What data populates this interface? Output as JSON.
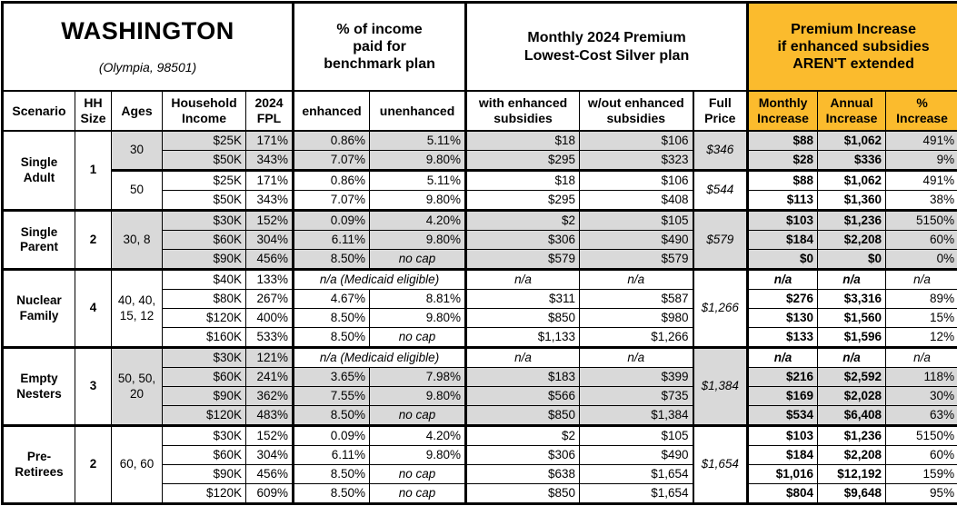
{
  "title": {
    "state": "WASHINGTON",
    "location": "(Olympia, 98501)"
  },
  "column_groups": {
    "benchmark": "% of income\npaid for\nbenchmark plan",
    "premium": "Monthly 2024 Premium\nLowest-Cost Silver plan",
    "increase": "Premium Increase\nif enhanced subsidies\nAREN'T extended"
  },
  "headers": {
    "scenario": "Scenario",
    "hh_size": "HH\nSize",
    "ages": "Ages",
    "household_income": "Household\nIncome",
    "fpl": "2024\nFPL",
    "enhanced": "enhanced",
    "unenhanced": "unenhanced",
    "with_sub": "with enhanced\nsubsidies",
    "without_sub": "w/out enhanced\nsubsidies",
    "full_price": "Full\nPrice",
    "monthly": "Monthly\nIncrease",
    "annual": "Annual\nIncrease",
    "pct": "%\nIncrease"
  },
  "scenarios": [
    {
      "name": "Single\nAdult",
      "hh": "1"
    },
    {
      "name": "Single\nParent",
      "hh": "2"
    },
    {
      "name": "Nuclear\nFamily",
      "hh": "4"
    },
    {
      "name": "Empty\nNesters",
      "hh": "3"
    },
    {
      "name": "Pre-\nRetirees",
      "hh": "2"
    }
  ],
  "age_cells": [
    "30",
    "50",
    "30, 8",
    "40, 40,\n15, 12",
    "50, 50,\n20",
    "60, 60"
  ],
  "full_prices": [
    "$346",
    "$544",
    "$579",
    "$1,266",
    "$1,384",
    "$1,654"
  ],
  "medicaid_note": "n/a (Medicaid eligible)",
  "no_cap": "no cap",
  "na": "n/a",
  "colors": {
    "accent_orange": "#FBBB2D",
    "row_gray": "#D9D9D9"
  },
  "rows": [
    {
      "income": "$25K",
      "fpl": "171%",
      "enhanced": "0.86%",
      "unenhanced": "5.11%",
      "with_sub": "$18",
      "wo_sub": "$106",
      "monthly": "$88",
      "annual": "$1,062",
      "pct": "491%"
    },
    {
      "income": "$50K",
      "fpl": "343%",
      "enhanced": "7.07%",
      "unenhanced": "9.80%",
      "with_sub": "$295",
      "wo_sub": "$323",
      "monthly": "$28",
      "annual": "$336",
      "pct": "9%"
    },
    {
      "income": "$25K",
      "fpl": "171%",
      "enhanced": "0.86%",
      "unenhanced": "5.11%",
      "with_sub": "$18",
      "wo_sub": "$106",
      "monthly": "$88",
      "annual": "$1,062",
      "pct": "491%"
    },
    {
      "income": "$50K",
      "fpl": "343%",
      "enhanced": "7.07%",
      "unenhanced": "9.80%",
      "with_sub": "$295",
      "wo_sub": "$408",
      "monthly": "$113",
      "annual": "$1,360",
      "pct": "38%"
    },
    {
      "income": "$30K",
      "fpl": "152%",
      "enhanced": "0.09%",
      "unenhanced": "4.20%",
      "with_sub": "$2",
      "wo_sub": "$105",
      "monthly": "$103",
      "annual": "$1,236",
      "pct": "5150%"
    },
    {
      "income": "$60K",
      "fpl": "304%",
      "enhanced": "6.11%",
      "unenhanced": "9.80%",
      "with_sub": "$306",
      "wo_sub": "$490",
      "monthly": "$184",
      "annual": "$2,208",
      "pct": "60%"
    },
    {
      "income": "$90K",
      "fpl": "456%",
      "enhanced": "8.50%",
      "unenhanced": "no cap",
      "with_sub": "$579",
      "wo_sub": "$579",
      "monthly": "$0",
      "annual": "$0",
      "pct": "0%"
    },
    {
      "income": "$40K",
      "fpl": "133%",
      "medicaid": "n/a (Medicaid eligible)",
      "with_sub": "n/a",
      "wo_sub": "n/a",
      "monthly": "n/a",
      "annual": "n/a",
      "pct": "n/a"
    },
    {
      "income": "$80K",
      "fpl": "267%",
      "enhanced": "4.67%",
      "unenhanced": "8.81%",
      "with_sub": "$311",
      "wo_sub": "$587",
      "monthly": "$276",
      "annual": "$3,316",
      "pct": "89%"
    },
    {
      "income": "$120K",
      "fpl": "400%",
      "enhanced": "8.50%",
      "unenhanced": "9.80%",
      "with_sub": "$850",
      "wo_sub": "$980",
      "monthly": "$130",
      "annual": "$1,560",
      "pct": "15%"
    },
    {
      "income": "$160K",
      "fpl": "533%",
      "enhanced": "8.50%",
      "unenhanced": "no cap",
      "with_sub": "$1,133",
      "wo_sub": "$1,266",
      "monthly": "$133",
      "annual": "$1,596",
      "pct": "12%"
    },
    {
      "income": "$30K",
      "fpl": "121%",
      "medicaid": "n/a (Medicaid eligible)",
      "with_sub": "n/a",
      "wo_sub": "n/a",
      "monthly": "n/a",
      "annual": "n/a",
      "pct": "n/a"
    },
    {
      "income": "$60K",
      "fpl": "241%",
      "enhanced": "3.65%",
      "unenhanced": "7.98%",
      "with_sub": "$183",
      "wo_sub": "$399",
      "monthly": "$216",
      "annual": "$2,592",
      "pct": "118%"
    },
    {
      "income": "$90K",
      "fpl": "362%",
      "enhanced": "7.55%",
      "unenhanced": "9.80%",
      "with_sub": "$566",
      "wo_sub": "$735",
      "monthly": "$169",
      "annual": "$2,028",
      "pct": "30%"
    },
    {
      "income": "$120K",
      "fpl": "483%",
      "enhanced": "8.50%",
      "unenhanced": "no cap",
      "with_sub": "$850",
      "wo_sub": "$1,384",
      "monthly": "$534",
      "annual": "$6,408",
      "pct": "63%"
    },
    {
      "income": "$30K",
      "fpl": "152%",
      "enhanced": "0.09%",
      "unenhanced": "4.20%",
      "with_sub": "$2",
      "wo_sub": "$105",
      "monthly": "$103",
      "annual": "$1,236",
      "pct": "5150%"
    },
    {
      "income": "$60K",
      "fpl": "304%",
      "enhanced": "6.11%",
      "unenhanced": "9.80%",
      "with_sub": "$306",
      "wo_sub": "$490",
      "monthly": "$184",
      "annual": "$2,208",
      "pct": "60%"
    },
    {
      "income": "$90K",
      "fpl": "456%",
      "enhanced": "8.50%",
      "unenhanced": "no cap",
      "with_sub": "$638",
      "wo_sub": "$1,654",
      "monthly": "$1,016",
      "annual": "$12,192",
      "pct": "159%"
    },
    {
      "income": "$120K",
      "fpl": "609%",
      "enhanced": "8.50%",
      "unenhanced": "no cap",
      "with_sub": "$850",
      "wo_sub": "$1,654",
      "monthly": "$804",
      "annual": "$9,648",
      "pct": "95%"
    }
  ]
}
